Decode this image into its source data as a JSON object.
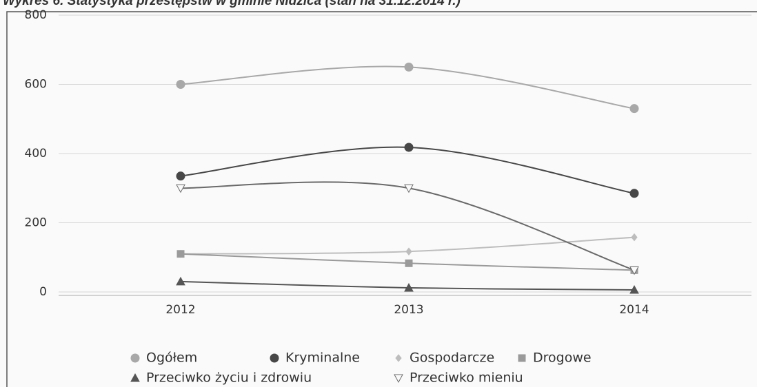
{
  "chart_data": {
    "type": "line",
    "title": "Wykres 6. Statystyka przestępstw w gminie Nidzica (stan na 31.12.2014 r.)",
    "categories": [
      "2012",
      "2013",
      "2014"
    ],
    "series": [
      {
        "name": "Ogółem",
        "color": "#a8a8a8",
        "marker": "circle",
        "values": [
          600,
          650,
          530
        ]
      },
      {
        "name": "Kryminalne",
        "color": "#474747",
        "marker": "circle",
        "values": [
          335,
          418,
          285
        ]
      },
      {
        "name": "Gospodarcze",
        "color": "#bdbdbd",
        "marker": "diamond",
        "values": [
          110,
          117,
          158
        ]
      },
      {
        "name": "Drogowe",
        "color": "#9a9a9a",
        "marker": "square",
        "values": [
          110,
          83,
          63
        ]
      },
      {
        "name": "Przeciwko życiu i zdrowiu",
        "color": "#555555",
        "marker": "triangle-up",
        "values": [
          30,
          12,
          6
        ]
      },
      {
        "name": "Przeciwko mieniu",
        "color": "#6a6a6a",
        "marker": "triangle-down",
        "values": [
          300,
          300,
          63
        ]
      }
    ],
    "ylim": [
      0,
      800
    ],
    "yticks": [
      0,
      200,
      400,
      600,
      800
    ],
    "grid": true
  }
}
